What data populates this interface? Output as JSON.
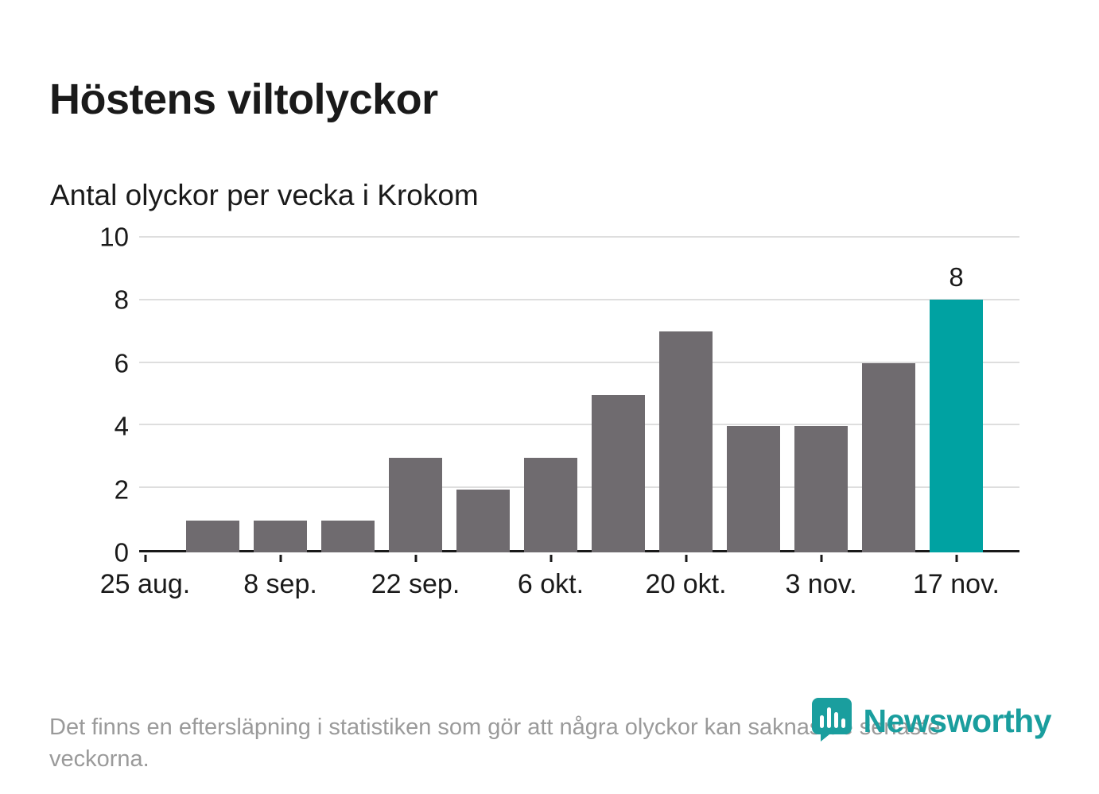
{
  "header": {
    "title": "Höstens viltolyckor",
    "subtitle": "Antal olyckor per vecka i Krokom"
  },
  "footnote": "Det finns en eftersläpning i statistiken som gör att några olyckor kan saknas de senaste veckorna.",
  "logo": {
    "text": "Newsworthy",
    "icon": "newsworthy-pin-chart-icon",
    "color": "#1a9e9e"
  },
  "chart_data": {
    "type": "bar",
    "title": "Höstens viltolyckor",
    "subtitle": "Antal olyckor per vecka i Krokom",
    "values": [
      0,
      1,
      1,
      1,
      3,
      2,
      3,
      5,
      7,
      4,
      4,
      6,
      8
    ],
    "bar_color": "#6f6b6f",
    "highlight_color": "#00a2a2",
    "highlight_index": 12,
    "highlight_label": "8",
    "ylim": [
      0,
      10
    ],
    "yticks": [
      0,
      2,
      4,
      6,
      8,
      10
    ],
    "xtick_labels": [
      "25 aug.",
      "8 sep.",
      "22 sep.",
      "6 okt.",
      "20 okt.",
      "3 nov.",
      "17 nov."
    ],
    "xtick_indices": [
      0,
      2,
      4,
      6,
      8,
      10,
      12
    ],
    "grid": "horizontal",
    "legend": "none",
    "xlabel": "",
    "ylabel": ""
  }
}
